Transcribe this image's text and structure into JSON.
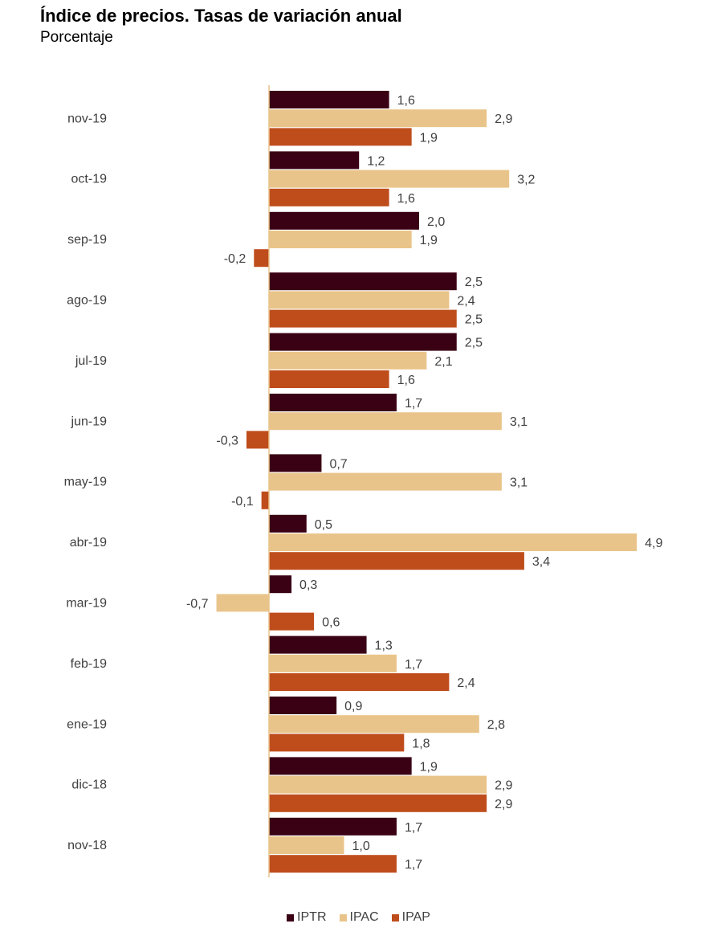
{
  "chart_data": {
    "type": "bar",
    "orientation": "horizontal",
    "title": "Índice de precios. Tasas de variación anual",
    "subtitle": "Porcentaje",
    "categories": [
      "nov-19",
      "oct-19",
      "sep-19",
      "ago-19",
      "jul-19",
      "jun-19",
      "may-19",
      "abr-19",
      "mar-19",
      "feb-19",
      "ene-19",
      "dic-18",
      "nov-18"
    ],
    "series": [
      {
        "name": "IPTR",
        "color": "#3a0014",
        "values": [
          1.6,
          1.2,
          2.0,
          2.5,
          2.5,
          1.7,
          0.7,
          0.5,
          0.3,
          1.3,
          0.9,
          1.9,
          1.7
        ],
        "labels": [
          "1,6",
          "1,2",
          "2,0",
          "2,5",
          "2,5",
          "1,7",
          "0,7",
          "0,5",
          "0,3",
          "1,3",
          "0,9",
          "1,9",
          "1,7"
        ]
      },
      {
        "name": "IPAC",
        "color": "#e9c48a",
        "values": [
          2.9,
          3.2,
          1.9,
          2.4,
          2.1,
          3.1,
          3.1,
          4.9,
          -0.7,
          1.7,
          2.8,
          2.9,
          1.0
        ],
        "labels": [
          "2,9",
          "3,2",
          "1,9",
          "2,4",
          "2,1",
          "3,1",
          "3,1",
          "4,9",
          "-0,7",
          "1,7",
          "2,8",
          "2,9",
          "1,0"
        ]
      },
      {
        "name": "IPAP",
        "color": "#bf4d1c",
        "values": [
          1.9,
          1.6,
          -0.2,
          2.5,
          1.6,
          -0.3,
          -0.1,
          3.4,
          0.6,
          2.4,
          1.8,
          2.9,
          1.7
        ],
        "labels": [
          "1,9",
          "1,6",
          "-0,2",
          "2,5",
          "1,6",
          "-0,3",
          "-0,1",
          "3,4",
          "0,6",
          "2,4",
          "1,8",
          "2,9",
          "1,7"
        ]
      }
    ],
    "axis_color": "#e9c48a",
    "grid": false,
    "legend_position": "bottom"
  }
}
